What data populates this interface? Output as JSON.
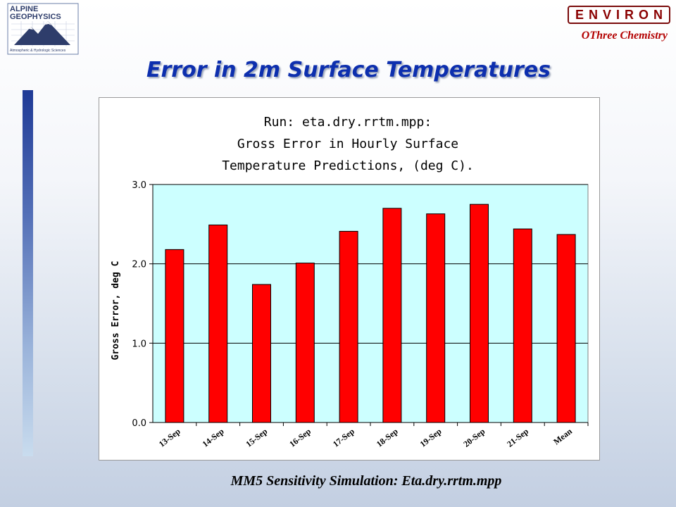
{
  "header": {
    "logo_left_text": [
      "ALPINE",
      "GEOPHYSICS",
      "Atmospheric & Hydrologic Sciences"
    ],
    "logo_right": "ENVIRON",
    "subtitle_right": "OThree Chemistry"
  },
  "page_title": "Error in 2m Surface Temperatures",
  "caption": "MM5 Sensitivity Simulation:  Eta.dry.rrtm.mpp",
  "colors": {
    "bar": "#ff0000",
    "plot_bg": "#ccffff",
    "title_blue": "#0d2fae",
    "environ_red": "#8a0000"
  },
  "chart_data": {
    "type": "bar",
    "title_lines": [
      "Run: eta.dry.rrtm.mpp:",
      "Gross Error in Hourly Surface",
      "Temperature Predictions, (deg C)."
    ],
    "xlabel": "",
    "ylabel": "Gross Error, deg C",
    "ylim": [
      0,
      3.0
    ],
    "yticks": [
      "0.0",
      "1.0",
      "2.0",
      "3.0"
    ],
    "grid": true,
    "legend": "none",
    "categories": [
      "13-Sep",
      "14-Sep",
      "15-Sep",
      "16-Sep",
      "17-Sep",
      "18-Sep",
      "19-Sep",
      "20-Sep",
      "21-Sep",
      "Mean"
    ],
    "values": [
      2.18,
      2.49,
      1.74,
      2.01,
      2.41,
      2.7,
      2.63,
      2.75,
      2.44,
      2.37
    ]
  }
}
